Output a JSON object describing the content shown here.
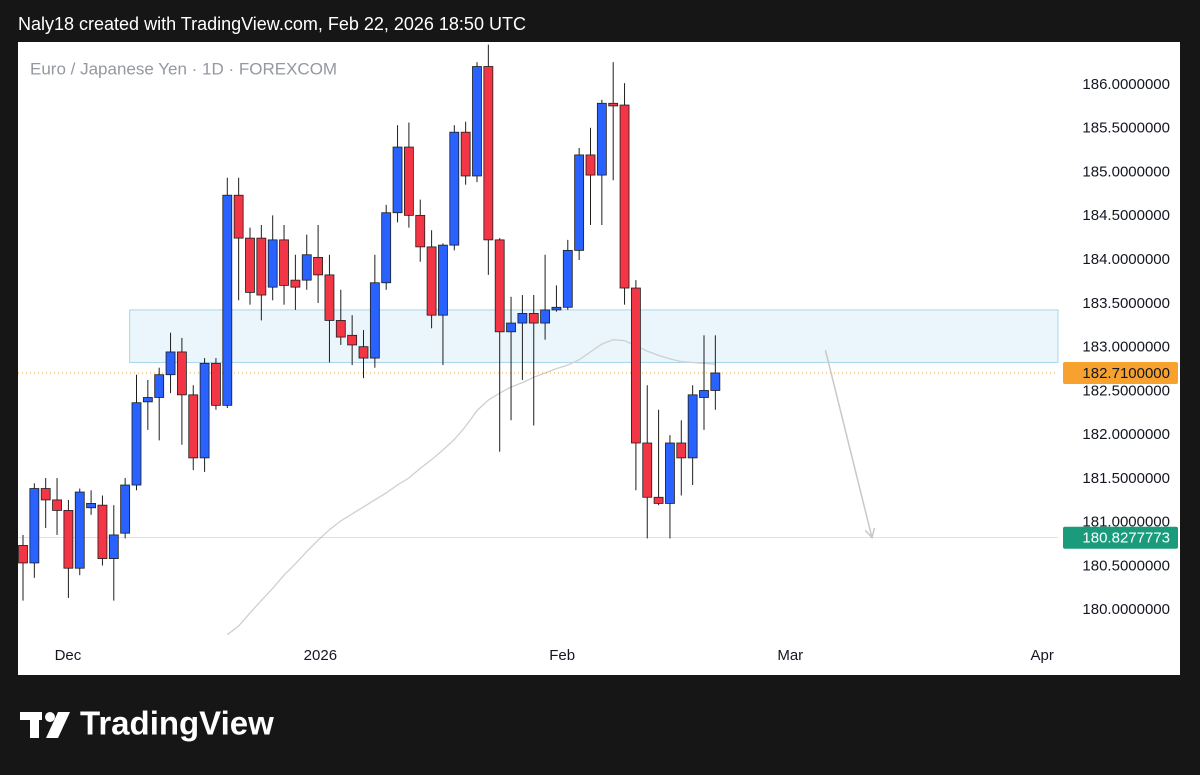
{
  "header": {
    "text": "Naly18 created with TradingView.com, Feb 22, 2026 18:50 UTC"
  },
  "chart_data": {
    "type": "candlestick",
    "legend_text": "Euro / Japanese Yen · 1D · FOREXCOM",
    "up_color": "#2962ff",
    "down_color": "#f23645",
    "wick_color": "#1e1e1e",
    "open": [
      180.74,
      180.54,
      181.39,
      181.26,
      181.14,
      180.48,
      181.17,
      181.2,
      180.59,
      180.88,
      181.43,
      182.38,
      182.43,
      182.69,
      182.95,
      182.46,
      181.74,
      182.82,
      182.34,
      184.74,
      184.25,
      184.25,
      183.69,
      184.23,
      183.77,
      183.77,
      184.03,
      183.83,
      183.31,
      183.14,
      183.01,
      182.88,
      183.74,
      184.54,
      185.29,
      184.51,
      184.15,
      183.37,
      184.17,
      185.46,
      184.96,
      186.21,
      184.23,
      183.18,
      183.28,
      183.39,
      183.28,
      183.43,
      183.46,
      184.11,
      185.2,
      184.97,
      185.79,
      185.77,
      183.68,
      181.91,
      181.29,
      181.22,
      181.91,
      181.74,
      182.43,
      182.51
    ],
    "high": [
      180.86,
      181.45,
      181.51,
      181.51,
      181.26,
      181.39,
      181.37,
      181.31,
      181.2,
      181.51,
      182.69,
      182.63,
      182.77,
      183.17,
      183.11,
      182.57,
      182.88,
      182.88,
      184.94,
      184.94,
      184.37,
      184.4,
      184.51,
      184.4,
      184.06,
      184.29,
      184.4,
      184.06,
      183.66,
      183.37,
      183.2,
      184.06,
      184.63,
      185.54,
      185.57,
      184.69,
      184.34,
      184.19,
      185.54,
      185.58,
      186.26,
      186.46,
      184.25,
      183.58,
      183.6,
      183.6,
      184.06,
      183.71,
      184.23,
      185.28,
      185.51,
      185.83,
      186.26,
      186.02,
      183.77,
      182.57,
      182.29,
      182.0,
      182.17,
      182.57,
      183.14,
      183.14
    ],
    "low": [
      180.11,
      180.37,
      180.94,
      180.86,
      180.14,
      180.4,
      181.09,
      180.51,
      180.11,
      180.82,
      181.37,
      182.06,
      181.94,
      182.48,
      181.89,
      181.6,
      181.58,
      182.29,
      182.31,
      183.54,
      183.49,
      183.31,
      183.54,
      183.49,
      183.43,
      183.66,
      183.51,
      182.83,
      183.03,
      182.8,
      182.65,
      182.77,
      183.66,
      184.43,
      184.37,
      183.98,
      183.22,
      182.8,
      184.11,
      184.86,
      184.89,
      183.83,
      181.81,
      182.17,
      182.63,
      182.11,
      183.09,
      183.41,
      183.43,
      184.0,
      184.4,
      184.4,
      184.91,
      183.49,
      181.37,
      180.82,
      181.2,
      180.82,
      181.31,
      181.43,
      182.06,
      182.29
    ],
    "close": [
      180.54,
      181.39,
      181.26,
      181.14,
      180.48,
      181.35,
      181.22,
      180.59,
      180.86,
      181.43,
      182.37,
      182.43,
      182.69,
      182.95,
      182.46,
      181.74,
      182.82,
      182.34,
      184.74,
      184.25,
      183.63,
      183.6,
      184.23,
      183.71,
      183.69,
      184.06,
      183.83,
      183.31,
      183.12,
      183.03,
      182.88,
      183.74,
      184.54,
      185.29,
      184.51,
      184.15,
      183.37,
      184.17,
      185.46,
      184.96,
      186.21,
      184.23,
      183.18,
      183.28,
      183.39,
      183.28,
      183.43,
      183.46,
      184.11,
      185.2,
      184.97,
      185.79,
      185.76,
      183.68,
      181.91,
      181.29,
      181.22,
      181.91,
      181.74,
      182.46,
      182.51,
      182.71
    ],
    "ma": {
      "color": "#cfcfcf",
      "values": [
        null,
        null,
        null,
        null,
        null,
        null,
        null,
        null,
        null,
        null,
        null,
        null,
        null,
        null,
        null,
        null,
        null,
        null,
        179.72,
        179.82,
        179.97,
        180.11,
        180.25,
        180.4,
        180.53,
        180.67,
        180.8,
        180.92,
        181.02,
        181.1,
        181.18,
        181.26,
        181.34,
        181.43,
        181.51,
        181.62,
        181.72,
        181.83,
        181.95,
        182.1,
        182.28,
        182.4,
        182.48,
        182.55,
        182.6,
        182.66,
        182.71,
        182.76,
        182.8,
        182.86,
        182.95,
        183.04,
        183.09,
        183.08,
        183.02,
        182.96,
        182.91,
        182.87,
        182.84,
        182.83,
        182.82,
        182.81
      ]
    },
    "zone": {
      "ylim": [
        182.83,
        183.43
      ],
      "xstart": 9.4,
      "fill": "#eaf6fc",
      "stroke": "#a9d6ea"
    },
    "arrow": {
      "from": [
        70.7,
        182.97
      ],
      "to": [
        74.8,
        180.83
      ],
      "color": "#c8c8c8"
    },
    "price_lines": [
      {
        "value": 182.71,
        "label": "182.7100000",
        "color": "#f7a12f",
        "text_color": "#131722",
        "dotted": true
      },
      {
        "value": 180.8277773,
        "label": "180.8277773",
        "color": "#1a9b7c",
        "text_color": "#ffffff",
        "dotted": false
      }
    ],
    "xlim": [
      -0.44,
      91.19
    ],
    "xticks": [
      {
        "value": 3.96,
        "label": "Dec"
      },
      {
        "value": 26.2,
        "label": "2026"
      },
      {
        "value": 47.5,
        "label": "Feb"
      },
      {
        "value": 67.6,
        "label": "Mar"
      },
      {
        "value": 89.8,
        "label": "Apr"
      }
    ],
    "ylim": [
      179.66,
      186.49
    ],
    "yticks": [
      {
        "value": 180,
        "label": "180.0000000"
      },
      {
        "value": 180.5,
        "label": "180.5000000"
      },
      {
        "value": 181,
        "label": "181.0000000"
      },
      {
        "value": 181.5,
        "label": "181.5000000"
      },
      {
        "value": 182,
        "label": "182.0000000"
      },
      {
        "value": 182.5,
        "label": "182.5000000"
      },
      {
        "value": 183,
        "label": "183.0000000"
      },
      {
        "value": 183.5,
        "label": "183.5000000"
      },
      {
        "value": 184,
        "label": "184.0000000"
      },
      {
        "value": 184.5,
        "label": "184.5000000"
      },
      {
        "value": 185,
        "label": "185.0000000"
      },
      {
        "value": 185.5,
        "label": "185.5000000"
      },
      {
        "value": 186,
        "label": "186.0000000"
      }
    ],
    "grid": false
  },
  "footer": {
    "logo_text": "TradingView"
  }
}
